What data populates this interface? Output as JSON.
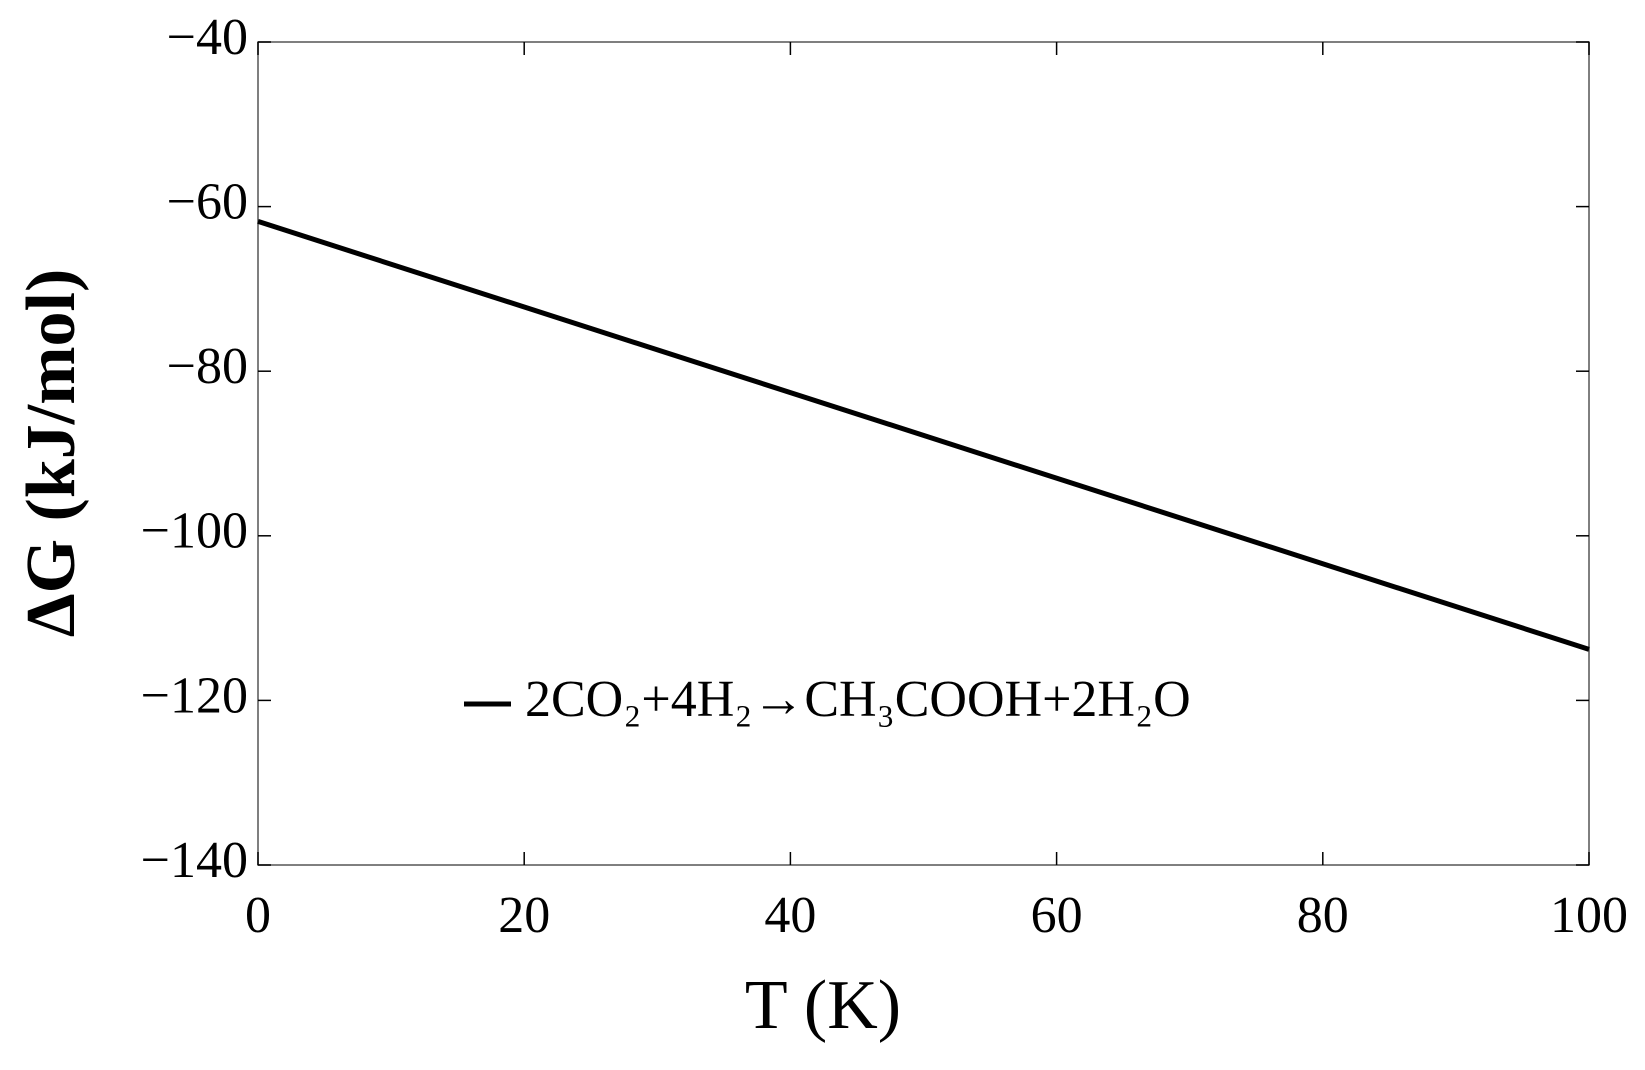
{
  "chart_data": {
    "type": "line",
    "x_label": "T (K)",
    "y_label": "ΔG (kJ/mol)",
    "x": [
      0,
      100
    ],
    "series": [
      {
        "name": "2CO₂+4H₂→CH₃COOH+2H₂O",
        "color": "#000000",
        "values": [
          -61.8,
          -113.8
        ]
      }
    ],
    "xlim": [
      0,
      100
    ],
    "xticks": [
      0,
      20,
      40,
      60,
      80,
      100
    ],
    "ylim": [
      -140,
      -40
    ],
    "yticks": [
      {
        "value": -140,
        "label": "−140"
      },
      {
        "value": -120,
        "label": "−120"
      },
      {
        "value": -100,
        "label": "−100"
      },
      {
        "value": -80,
        "label": "−80"
      },
      {
        "value": -60,
        "label": "−60"
      },
      {
        "value": -40,
        "label": "−40"
      }
    ],
    "grid": false
  }
}
